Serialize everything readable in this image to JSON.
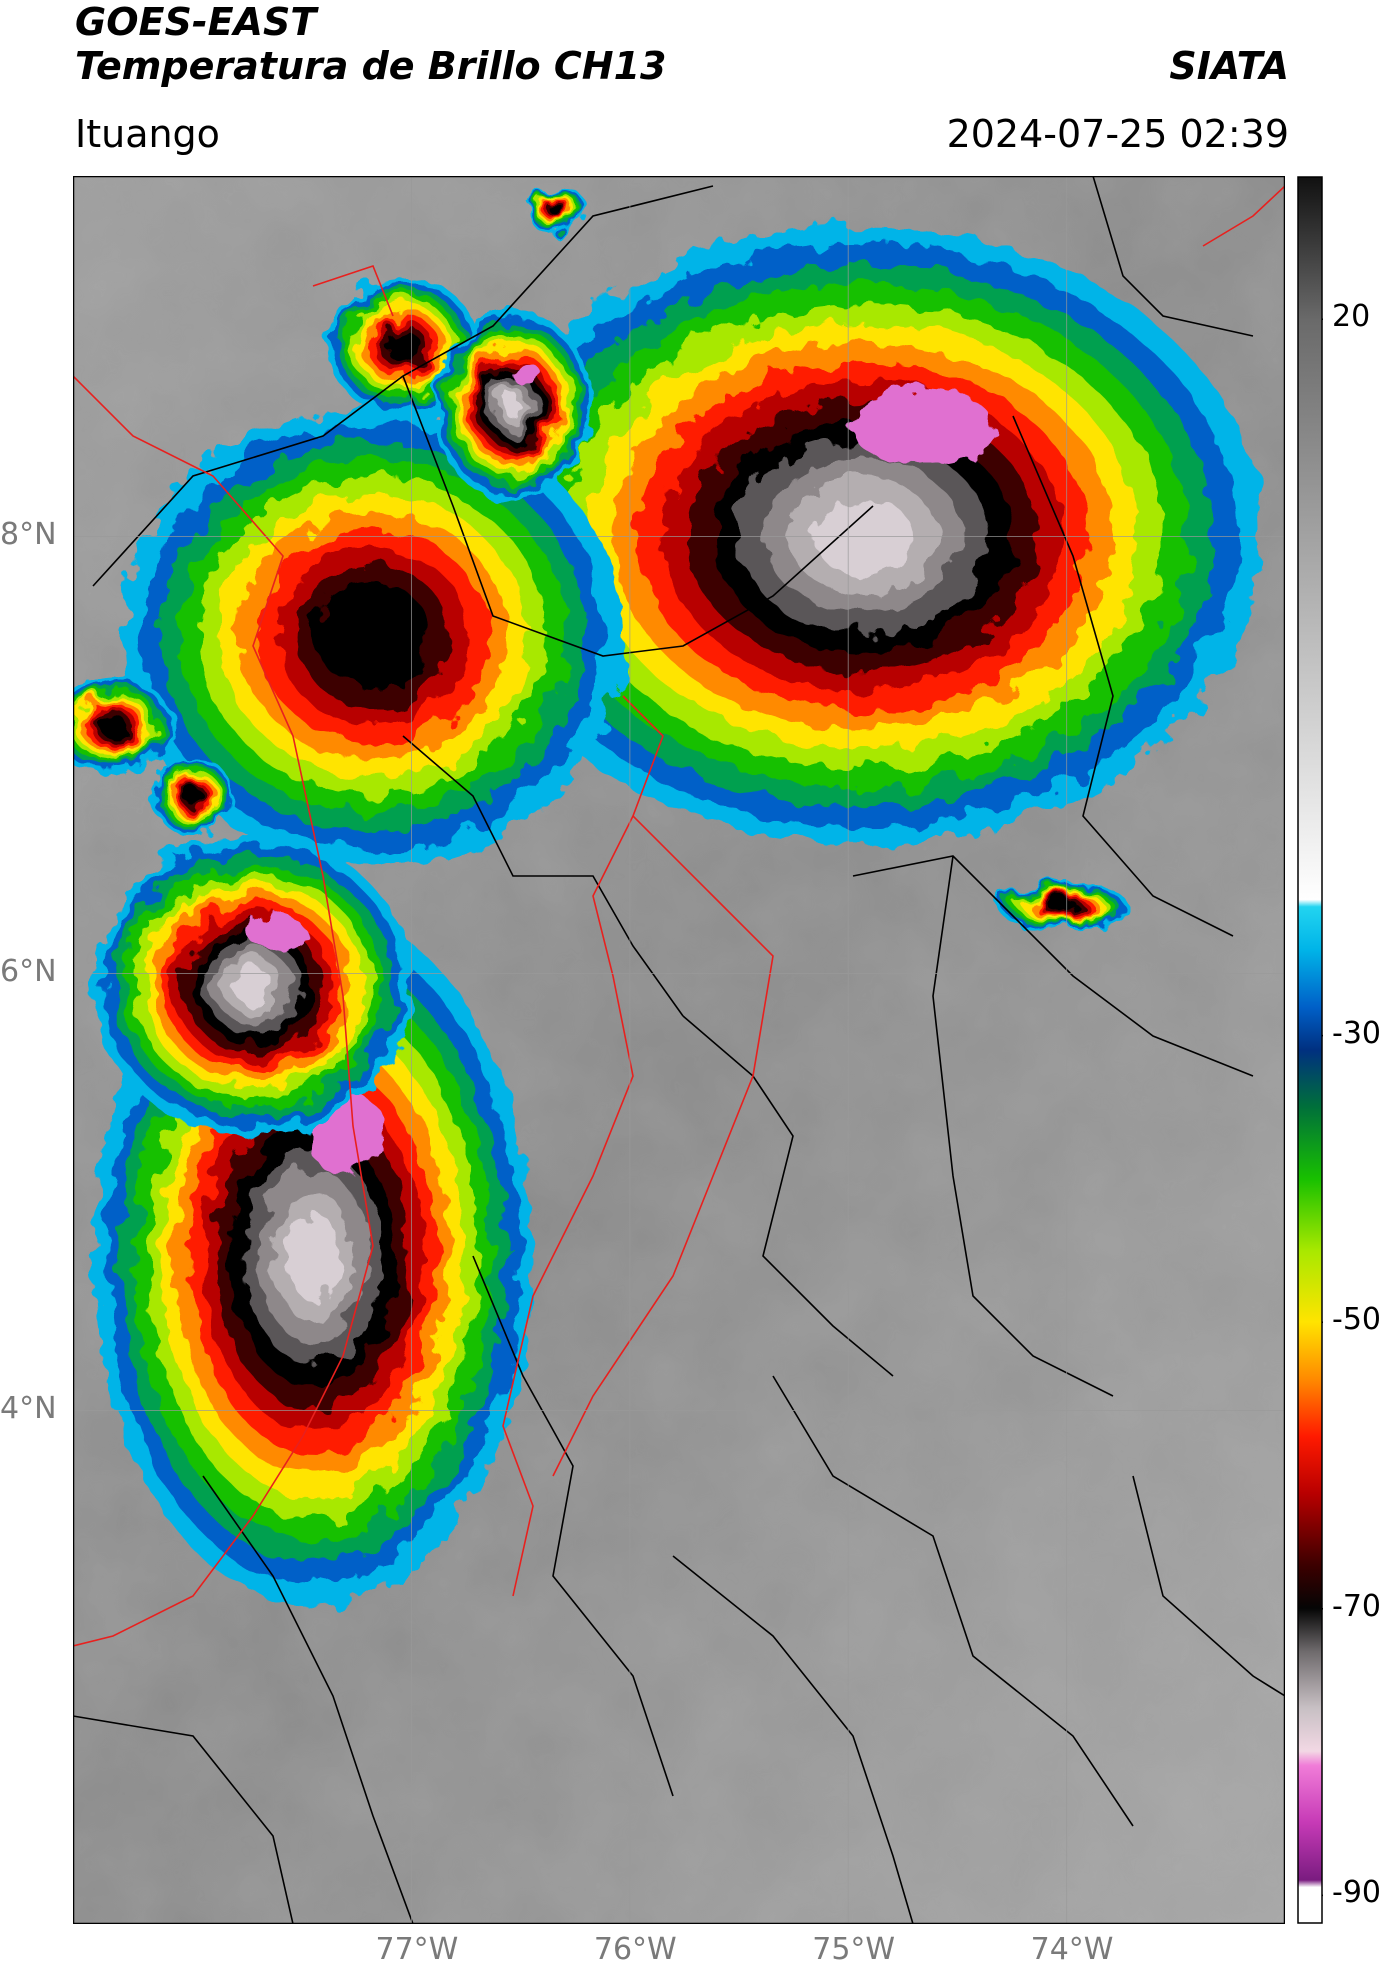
{
  "header": {
    "satellite": "GOES-EAST",
    "product": "Temperatura de Brillo CH13",
    "agency": "SIATA",
    "location": "Ituango",
    "datetime": "2024-07-25 02:39"
  },
  "map": {
    "lat_labels": [
      {
        "text": "8°N",
        "lat": 8
      },
      {
        "text": "6°N",
        "lat": 6
      },
      {
        "text": "4°N",
        "lat": 4
      }
    ],
    "lon_labels": [
      {
        "text": "77°W",
        "lon": -77
      },
      {
        "text": "76°W",
        "lon": -76
      },
      {
        "text": "75°W",
        "lon": -75
      },
      {
        "text": "74°W",
        "lon": -74
      }
    ],
    "extent": {
      "lon_min": -78.55,
      "lon_max": -73,
      "lat_min": 1.65,
      "lat_max": 9.65
    },
    "colors": {
      "boundary_national": "#e8201e",
      "boundary_regional": "#000000",
      "gridline": "#9a9a9a"
    }
  },
  "colorbar": {
    "tick_labels": [
      {
        "text": "20",
        "value": 20
      },
      {
        "text": "-30",
        "value": -30
      },
      {
        "text": "-50",
        "value": -50
      },
      {
        "text": "-70",
        "value": -70
      },
      {
        "text": "-90",
        "value": -90
      }
    ],
    "range": [
      -92,
      30
    ],
    "stops": [
      {
        "v": -92,
        "color": "#ffffff"
      },
      {
        "v": -89.5,
        "color": "#ffffff"
      },
      {
        "v": -89,
        "color": "#7a1c80"
      },
      {
        "v": -85,
        "color": "#c63ab6"
      },
      {
        "v": -81,
        "color": "#f07cd8"
      },
      {
        "v": -80,
        "color": "#f2d8e4"
      },
      {
        "v": -77,
        "color": "#c8c0c4"
      },
      {
        "v": -73,
        "color": "#6e6a6c"
      },
      {
        "v": -70,
        "color": "#050505"
      },
      {
        "v": -67,
        "color": "#3c0000"
      },
      {
        "v": -62,
        "color": "#b80000"
      },
      {
        "v": -58,
        "color": "#ff1a00"
      },
      {
        "v": -54,
        "color": "#ff8a00"
      },
      {
        "v": -50,
        "color": "#ffe400"
      },
      {
        "v": -45,
        "color": "#a8e800"
      },
      {
        "v": -40,
        "color": "#18c000"
      },
      {
        "v": -35,
        "color": "#00703a"
      },
      {
        "v": -31,
        "color": "#003080"
      },
      {
        "v": -28,
        "color": "#0060c8"
      },
      {
        "v": -24,
        "color": "#00b4e8"
      },
      {
        "v": -21,
        "color": "#22d4f0"
      },
      {
        "v": -20.5,
        "color": "#ffffff"
      },
      {
        "v": 0,
        "color": "#b4b4b4"
      },
      {
        "v": 20,
        "color": "#6a6a6a"
      },
      {
        "v": 30,
        "color": "#111111"
      }
    ]
  }
}
